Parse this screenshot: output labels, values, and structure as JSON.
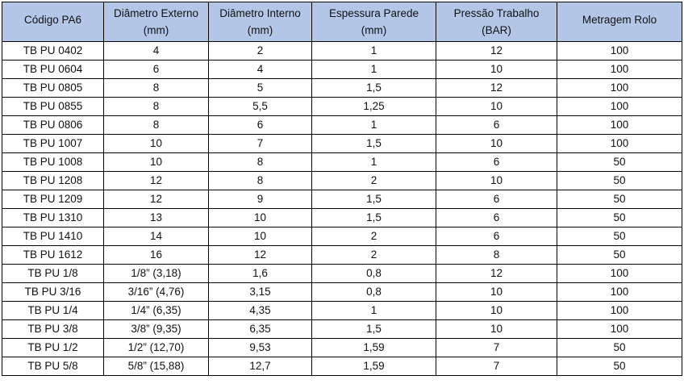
{
  "table": {
    "headers": [
      {
        "line1": "Código PA6",
        "line2": ""
      },
      {
        "line1": "Diâmetro Externo",
        "line2": "(mm)"
      },
      {
        "line1": "Diâmetro Interno",
        "line2": "(mm)"
      },
      {
        "line1": "Espessura Parede",
        "line2": "(mm)"
      },
      {
        "line1": "Pressão Trabalho",
        "line2": "(BAR)"
      },
      {
        "line1": "Metragem Rolo",
        "line2": ""
      }
    ],
    "rows": [
      [
        "TB PU 0402",
        "4",
        "2",
        "1",
        "12",
        "100"
      ],
      [
        "TB PU 0604",
        "6",
        "4",
        "1",
        "10",
        "100"
      ],
      [
        "TB PU 0805",
        "8",
        "5",
        "1,5",
        "12",
        "100"
      ],
      [
        "TB PU 0855",
        "8",
        "5,5",
        "1,25",
        "10",
        "100"
      ],
      [
        "TB PU 0806",
        "8",
        "6",
        "1",
        "6",
        "100"
      ],
      [
        "TB PU 1007",
        "10",
        "7",
        "1,5",
        "10",
        "100"
      ],
      [
        "TB PU 1008",
        "10",
        "8",
        "1",
        "6",
        "50"
      ],
      [
        "TB PU 1208",
        "12",
        "8",
        "2",
        "10",
        "50"
      ],
      [
        "TB PU 1209",
        "12",
        "9",
        "1,5",
        "6",
        "50"
      ],
      [
        "TB PU 1310",
        "13",
        "10",
        "1,5",
        "6",
        "50"
      ],
      [
        "TB PU 1410",
        "14",
        "10",
        "2",
        "6",
        "50"
      ],
      [
        "TB PU 1612",
        "16",
        "12",
        "2",
        "8",
        "50"
      ],
      [
        "TB PU 1/8",
        "1/8” (3,18)",
        "1,6",
        "0,8",
        "12",
        "100"
      ],
      [
        "TB PU 3/16",
        "3/16” (4,76)",
        "3,15",
        "0,8",
        "10",
        "100"
      ],
      [
        "TB PU 1/4",
        "1/4” (6,35)",
        "4,35",
        "1",
        "10",
        "100"
      ],
      [
        "TB PU 3/8",
        "3/8” (9,35)",
        "6,35",
        "1,5",
        "10",
        "100"
      ],
      [
        "TB PU 1/2",
        "1/2” (12,70)",
        "9,53",
        "1,59",
        "7",
        "50"
      ],
      [
        "TB PU 5/8",
        "5/8” (15,88)",
        "12,7",
        "1,59",
        "7",
        "50"
      ]
    ]
  }
}
